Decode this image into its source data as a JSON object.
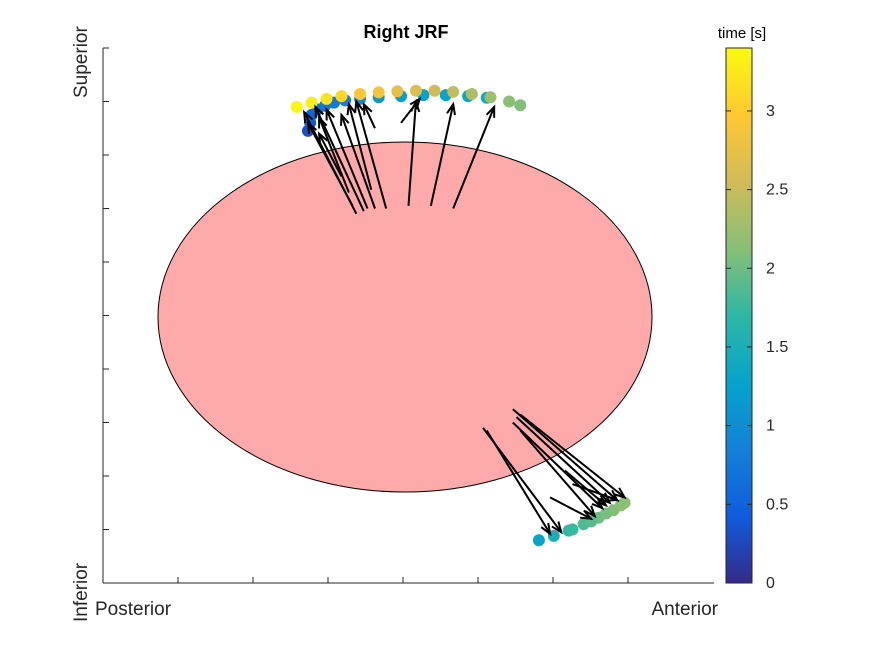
{
  "chart_data": {
    "type": "scatter",
    "title": "Right JRF",
    "x_axis": {
      "left_label": "Posterior",
      "right_label": "Anterior",
      "tick_labels_shown": false
    },
    "y_axis": {
      "bottom_label": "Inferior",
      "top_label": "Superior",
      "tick_labels_shown": false
    },
    "grid": false,
    "background_shape": {
      "type": "ellipse",
      "fill": "#ffaaaa",
      "stroke": "#000000"
    },
    "colorbar": {
      "label": "time [s]",
      "range": [
        0,
        3.4
      ],
      "ticks": [
        0,
        0.5,
        1,
        1.5,
        2,
        2.5,
        3
      ],
      "tick_labels": [
        "0",
        "0.5",
        "1",
        "1.5",
        "2",
        "2.5",
        "3"
      ],
      "colormap": "parula",
      "stops": [
        "#352a87",
        "#0f5cdd",
        "#1481d6",
        "#06a4ca",
        "#2eb7a4",
        "#87bf77",
        "#d1bb59",
        "#fec832",
        "#f9fb0e"
      ]
    },
    "contact_clusters": [
      {
        "name": "superior",
        "points": [
          {
            "x": 2.75,
            "y": 8.45,
            "t": 0.3
          },
          {
            "x": 2.78,
            "y": 8.6,
            "t": 0.4
          },
          {
            "x": 2.8,
            "y": 8.75,
            "t": 0.5
          },
          {
            "x": 2.88,
            "y": 8.85,
            "t": 0.6
          },
          {
            "x": 2.98,
            "y": 8.92,
            "t": 0.7
          },
          {
            "x": 3.1,
            "y": 8.98,
            "t": 0.75
          },
          {
            "x": 3.25,
            "y": 9.02,
            "t": 0.8
          },
          {
            "x": 3.45,
            "y": 9.05,
            "t": 1.0
          },
          {
            "x": 3.7,
            "y": 9.08,
            "t": 1.1
          },
          {
            "x": 4.0,
            "y": 9.1,
            "t": 1.2
          },
          {
            "x": 4.3,
            "y": 9.12,
            "t": 1.25
          },
          {
            "x": 4.6,
            "y": 9.12,
            "t": 1.3
          },
          {
            "x": 4.9,
            "y": 9.1,
            "t": 1.35
          },
          {
            "x": 5.15,
            "y": 9.07,
            "t": 1.4
          },
          {
            "x": 2.6,
            "y": 8.9,
            "t": 3.35
          },
          {
            "x": 2.8,
            "y": 8.98,
            "t": 3.3
          },
          {
            "x": 3.0,
            "y": 9.05,
            "t": 3.2
          },
          {
            "x": 3.2,
            "y": 9.1,
            "t": 3.1
          },
          {
            "x": 3.45,
            "y": 9.14,
            "t": 2.95
          },
          {
            "x": 3.7,
            "y": 9.17,
            "t": 2.85
          },
          {
            "x": 3.95,
            "y": 9.19,
            "t": 2.75
          },
          {
            "x": 4.2,
            "y": 9.2,
            "t": 2.65
          },
          {
            "x": 4.45,
            "y": 9.2,
            "t": 2.55
          },
          {
            "x": 4.7,
            "y": 9.18,
            "t": 2.45
          },
          {
            "x": 4.95,
            "y": 9.14,
            "t": 2.35
          },
          {
            "x": 5.2,
            "y": 9.08,
            "t": 2.25
          },
          {
            "x": 5.45,
            "y": 9.0,
            "t": 2.15
          },
          {
            "x": 5.6,
            "y": 8.93,
            "t": 2.1
          }
        ],
        "vectors": [
          {
            "x0": 3.4,
            "y0": 6.9,
            "x1": 2.7,
            "y1": 8.8
          },
          {
            "x0": 3.5,
            "y0": 6.95,
            "x1": 2.85,
            "y1": 8.9
          },
          {
            "x0": 3.35,
            "y0": 7.05,
            "x1": 2.75,
            "y1": 8.6
          },
          {
            "x0": 3.55,
            "y0": 7.0,
            "x1": 3.0,
            "y1": 8.85
          },
          {
            "x0": 3.3,
            "y0": 7.3,
            "x1": 2.9,
            "y1": 8.7
          },
          {
            "x0": 3.65,
            "y0": 7.0,
            "x1": 3.2,
            "y1": 8.75
          },
          {
            "x0": 3.6,
            "y0": 7.35,
            "x1": 3.3,
            "y1": 8.95
          },
          {
            "x0": 3.8,
            "y0": 7.0,
            "x1": 3.4,
            "y1": 9.0
          },
          {
            "x0": 3.2,
            "y0": 7.6,
            "x1": 2.9,
            "y1": 8.4
          },
          {
            "x0": 4.1,
            "y0": 7.05,
            "x1": 4.2,
            "y1": 9.0
          },
          {
            "x0": 4.4,
            "y0": 7.05,
            "x1": 4.7,
            "y1": 8.95
          },
          {
            "x0": 4.7,
            "y0": 7.0,
            "x1": 5.25,
            "y1": 8.9
          },
          {
            "x0": 4.0,
            "y0": 8.6,
            "x1": 4.25,
            "y1": 9.05
          },
          {
            "x0": 3.65,
            "y0": 8.5,
            "x1": 3.5,
            "y1": 8.95
          }
        ]
      },
      {
        "name": "inferior",
        "points": [
          {
            "x": 5.85,
            "y": 0.8,
            "t": 1.3
          },
          {
            "x": 6.05,
            "y": 0.88,
            "t": 1.5
          },
          {
            "x": 6.25,
            "y": 0.98,
            "t": 1.7
          },
          {
            "x": 6.45,
            "y": 1.1,
            "t": 1.85
          },
          {
            "x": 6.65,
            "y": 1.22,
            "t": 2.0
          },
          {
            "x": 6.85,
            "y": 1.36,
            "t": 2.1
          },
          {
            "x": 7.0,
            "y": 1.5,
            "t": 2.15
          },
          {
            "x": 6.3,
            "y": 1.0,
            "t": 1.75
          },
          {
            "x": 6.55,
            "y": 1.15,
            "t": 1.9
          },
          {
            "x": 6.75,
            "y": 1.3,
            "t": 2.05
          },
          {
            "x": 6.95,
            "y": 1.45,
            "t": 2.15
          }
        ],
        "vectors": [
          {
            "x0": 5.1,
            "y0": 2.9,
            "x1": 6.15,
            "y1": 0.95
          },
          {
            "x0": 5.15,
            "y0": 2.85,
            "x1": 6.0,
            "y1": 0.92
          },
          {
            "x0": 5.5,
            "y0": 3.25,
            "x1": 6.9,
            "y1": 1.55
          },
          {
            "x0": 5.55,
            "y0": 3.1,
            "x1": 6.8,
            "y1": 1.5
          },
          {
            "x0": 5.5,
            "y0": 3.0,
            "x1": 6.7,
            "y1": 1.4
          },
          {
            "x0": 5.6,
            "y0": 3.15,
            "x1": 7.0,
            "y1": 1.6
          },
          {
            "x0": 5.6,
            "y0": 2.85,
            "x1": 6.6,
            "y1": 1.25
          },
          {
            "x0": 6.3,
            "y0": 1.85,
            "x1": 6.9,
            "y1": 1.55
          },
          {
            "x0": 6.2,
            "y0": 2.1,
            "x1": 6.75,
            "y1": 1.45
          },
          {
            "x0": 6.0,
            "y0": 1.6,
            "x1": 6.55,
            "y1": 1.2
          }
        ]
      }
    ]
  }
}
